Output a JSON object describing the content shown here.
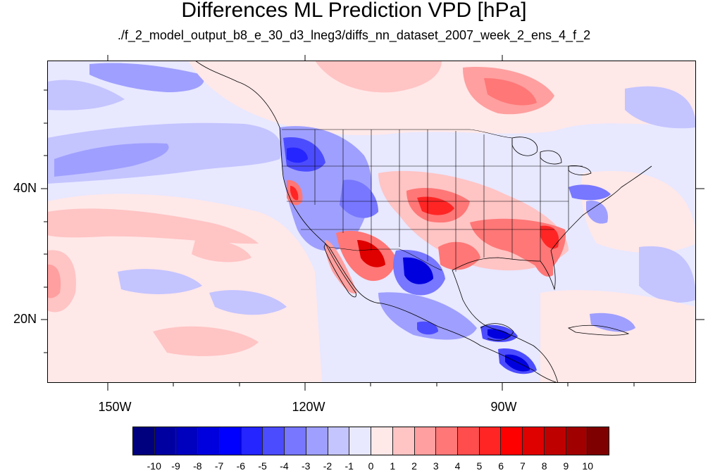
{
  "title": "Differences ML Prediction VPD [hPa]",
  "subtitle": "./f_2_model_output_b8_e_30_d3_lneg3/diffs_nn_dataset_2007_week_2_ens_4_f_2",
  "axes": {
    "lat_labels": [
      "40N",
      "20N"
    ],
    "lon_labels": [
      "150W",
      "120W",
      "90W"
    ]
  },
  "colorbar": {
    "labels": [
      "-10",
      "-9",
      "-8",
      "-7",
      "-6",
      "-5",
      "-4",
      "-3",
      "-2",
      "-1",
      "0",
      "1",
      "2",
      "3",
      "4",
      "5",
      "6",
      "7",
      "8",
      "9",
      "10"
    ],
    "colors": [
      "#00007f",
      "#0000a0",
      "#0000bf",
      "#0000df",
      "#0000ff",
      "#2525ff",
      "#4c4cff",
      "#7777ff",
      "#9f9fff",
      "#c4c4ff",
      "#e8e8ff",
      "#ffe8e8",
      "#ffc4c4",
      "#ff9f9f",
      "#ff7777",
      "#ff4c4c",
      "#ff2525",
      "#ff0000",
      "#df0000",
      "#bf0000",
      "#a00000",
      "#7f0000"
    ]
  },
  "map_colors": {
    "ocean_base": "#e8e8ff",
    "light_red": "#ffe8e8",
    "red2": "#ffc4c4",
    "red3": "#ff9f9f",
    "red4": "#ff7777",
    "red6": "#ff2525",
    "red8": "#df0000",
    "red10": "#a00000",
    "blue2": "#c4c4ff",
    "blue3": "#9f9fff",
    "blue4": "#7777ff",
    "blue6": "#2525ff",
    "blue8": "#0000df",
    "outline": "#000000"
  }
}
